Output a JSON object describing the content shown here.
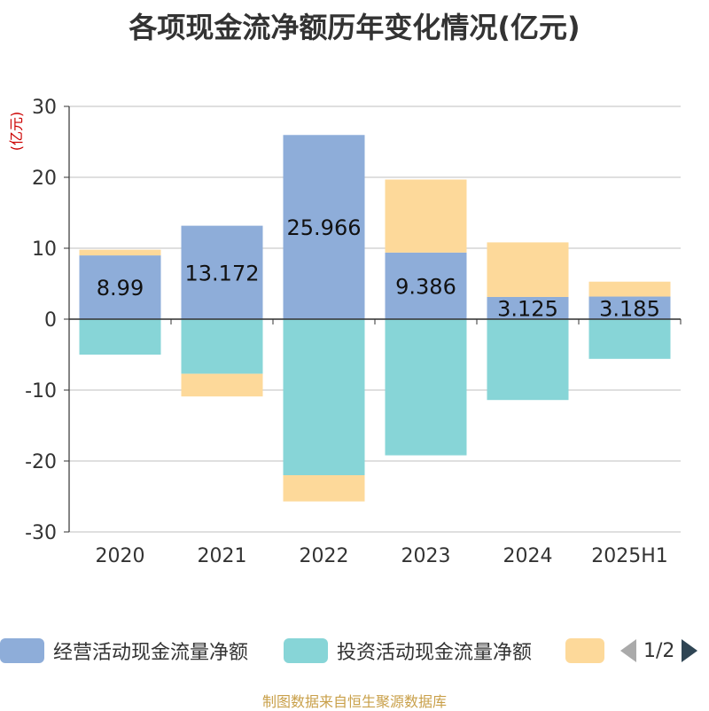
{
  "colors": {
    "operating": "#8eadd9",
    "investing": "#87d5d7",
    "financing": "#fdd99a",
    "axis": "#333333",
    "grid": "#cccccc",
    "unit": "#cc0000",
    "footer": "#c9a04a"
  },
  "chart_data": {
    "type": "bar",
    "stacked": true,
    "title": "各项现金流净额历年变化情况(亿元)",
    "ylabel": "(亿元)",
    "ylim": [
      -30,
      30
    ],
    "yticks": [
      30,
      20,
      10,
      0,
      -10,
      -20,
      -30
    ],
    "categories": [
      "2020",
      "2021",
      "2022",
      "2023",
      "2024",
      "2025H1"
    ],
    "series": [
      {
        "name": "经营活动现金流量净额",
        "values": [
          8.99,
          13.172,
          25.966,
          9.386,
          3.125,
          3.185
        ],
        "show_labels": true
      },
      {
        "name": "投资活动现金流量净额",
        "values": [
          -5.0,
          -7.7,
          -22.0,
          -19.2,
          -11.4,
          -5.6
        ],
        "show_labels": false
      },
      {
        "name": "",
        "values": [
          0.8,
          -3.2,
          -3.7,
          10.3,
          7.7,
          2.1
        ],
        "show_labels": false
      }
    ],
    "grid": true,
    "legend_position": "bottom"
  },
  "legend": {
    "pager": "1/2"
  },
  "footer": "制图数据来自恒生聚源数据库"
}
